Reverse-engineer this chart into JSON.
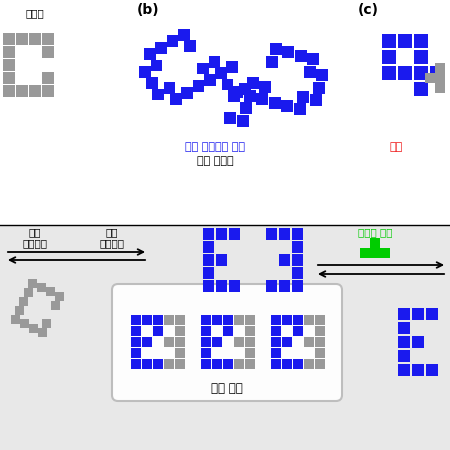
{
  "blue": "#1a1aee",
  "gray": "#999999",
  "green": "#00cc00",
  "red": "#ee1111",
  "black": "#000000",
  "white": "#FFFFFF",
  "bg_bottom": "#e8e8e8",
  "label_b": "(b)",
  "label_c": "(c)",
  "text_same_hand": "같은 손대칭성 분자",
  "text_mismatch": "결합 불일치",
  "text_different": "다른",
  "text_low": "낙은",
  "text_low2": "비대칭성",
  "text_high": "높은",
  "text_high2": "비대칭성",
  "text_another": "또다른 분자",
  "text_mutual": "상호 견제",
  "text_handle": "손잡이"
}
